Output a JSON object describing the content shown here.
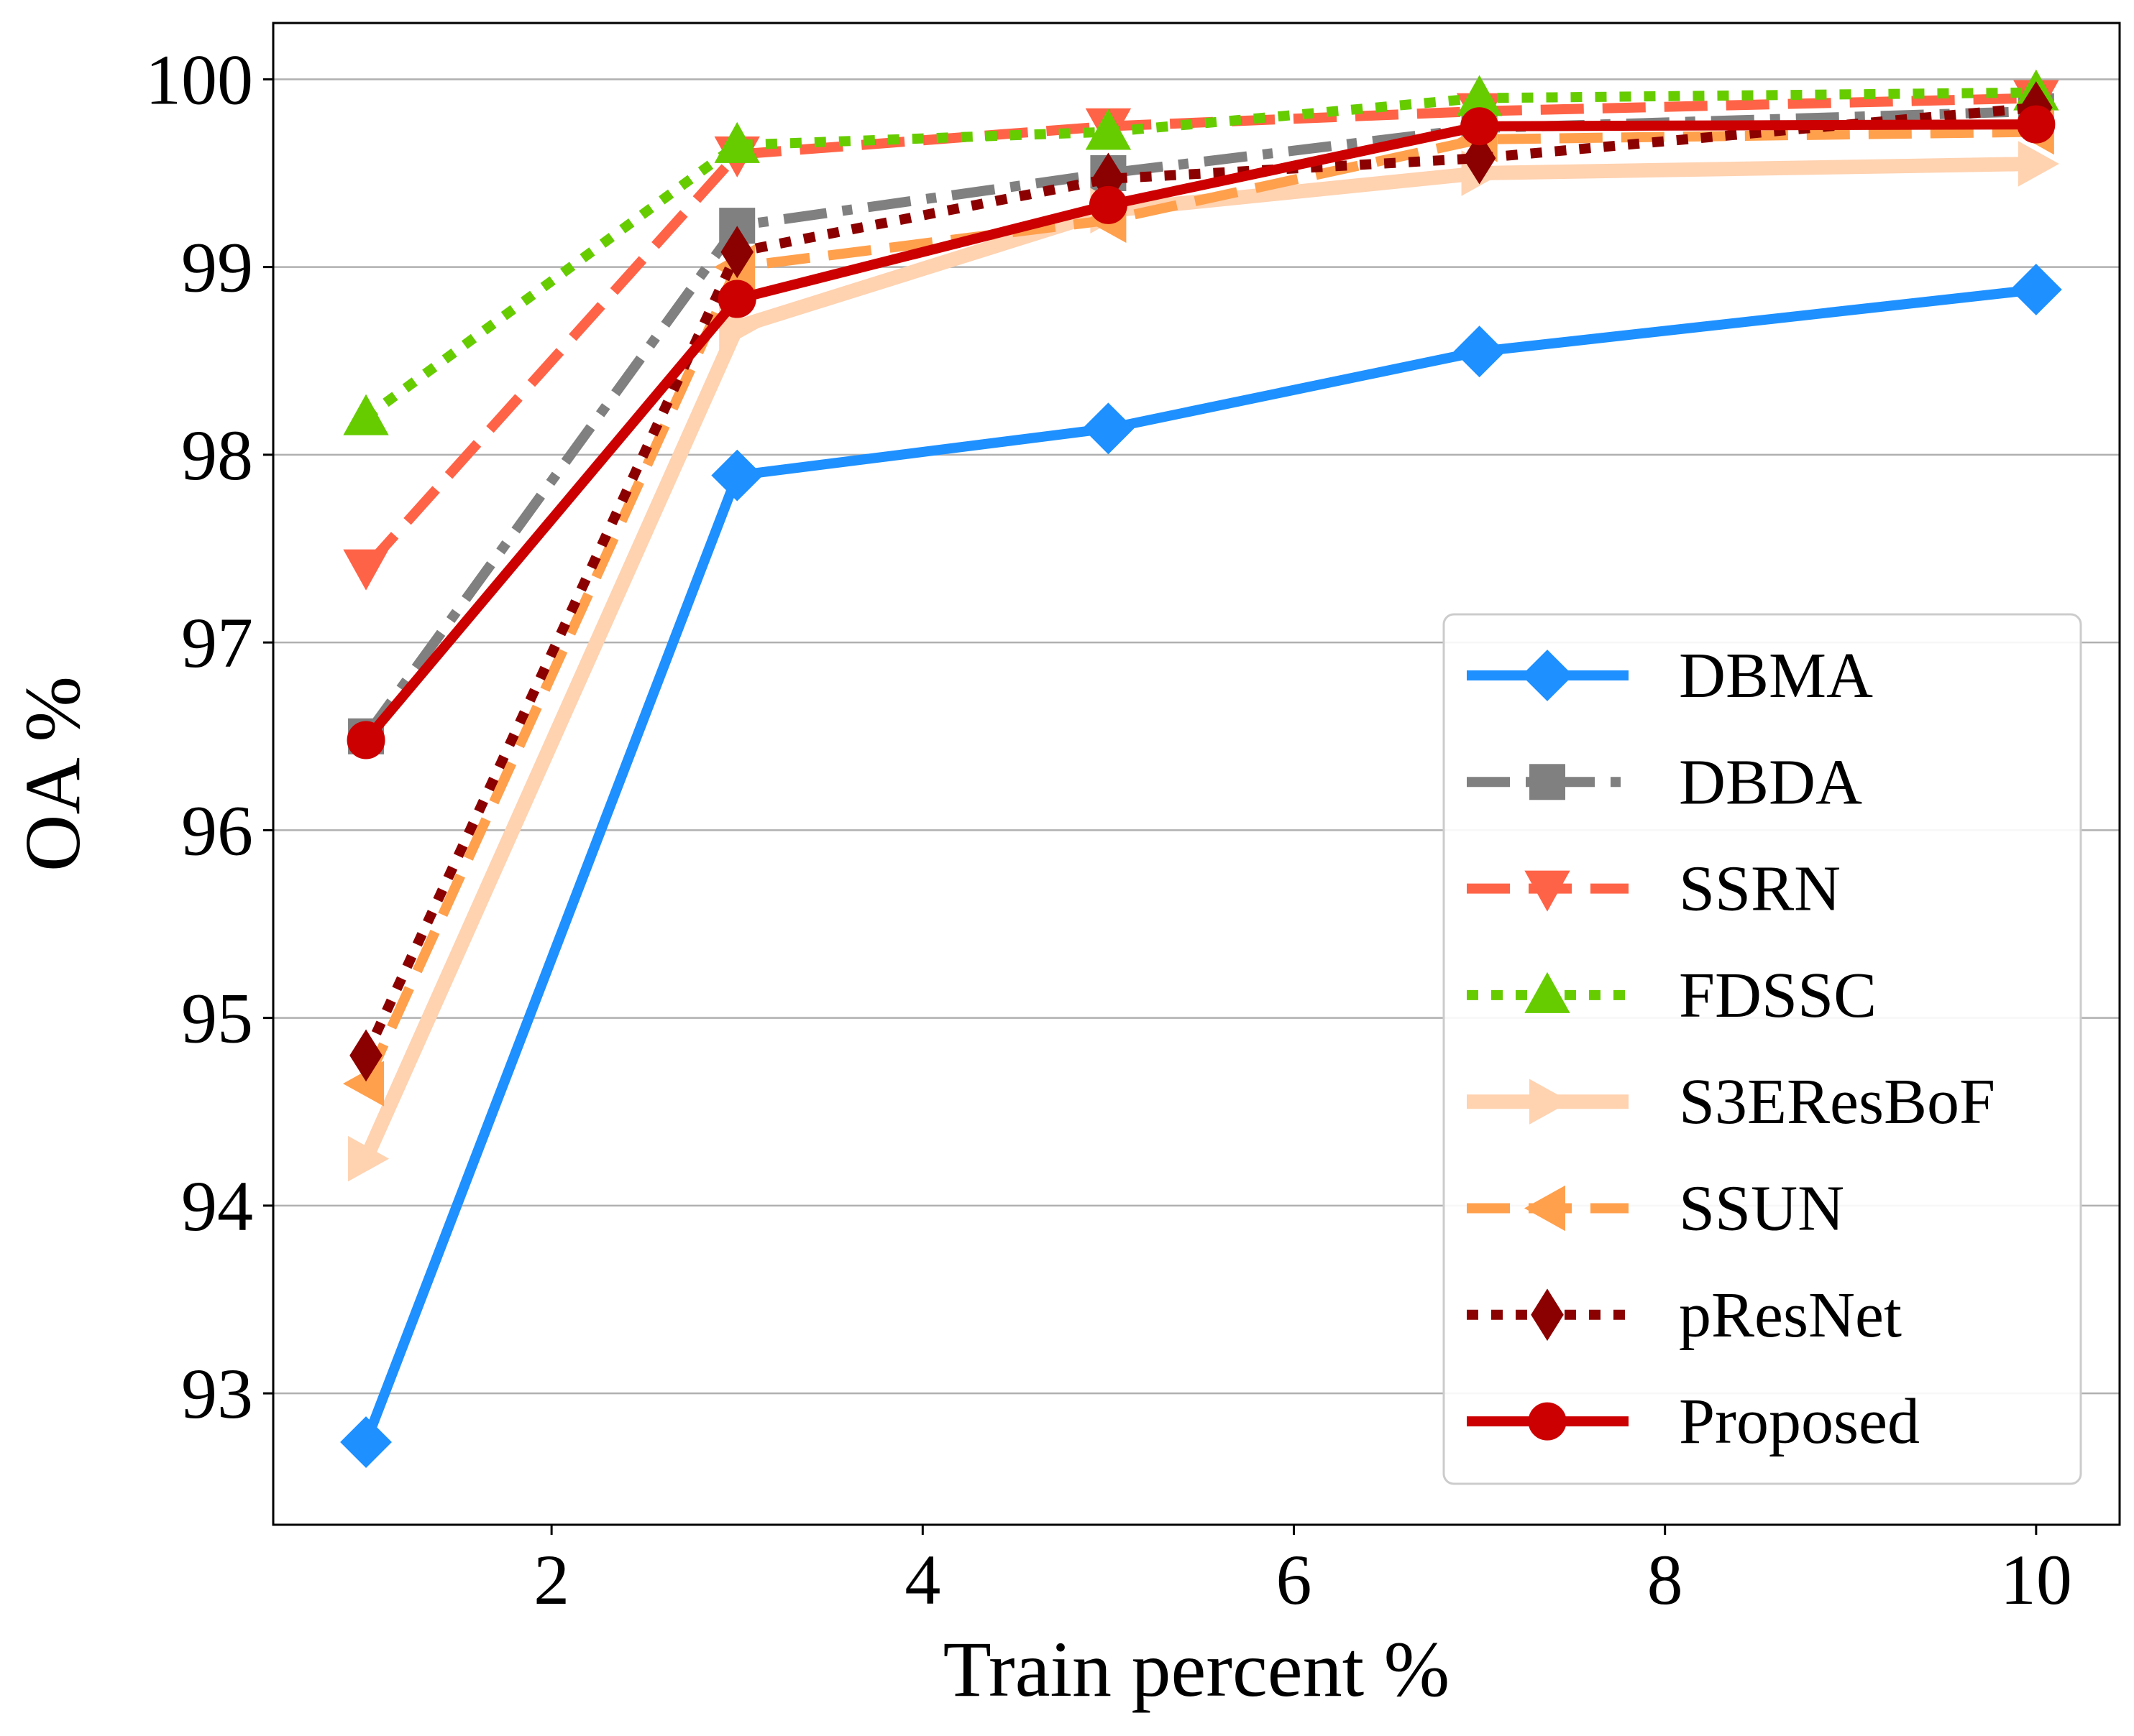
{
  "chart_data": {
    "type": "line",
    "xlabel": "Train percent %",
    "ylabel": "OA %",
    "x": [
      1,
      3,
      5,
      7,
      10
    ],
    "xlim": [
      0.5,
      10.45
    ],
    "ylim": [
      92.3,
      100.3
    ],
    "xticks": [
      "2",
      "4",
      "6",
      "8",
      "10"
    ],
    "yticks": [
      "93",
      "94",
      "95",
      "96",
      "97",
      "98",
      "99",
      "100"
    ],
    "grid": "horizontal",
    "legend_position": "lower right",
    "series": [
      {
        "name": "DBMA",
        "values": [
          92.74,
          97.89,
          98.14,
          98.55,
          98.88
        ],
        "color": "#1e90ff",
        "marker": "diamond",
        "line": "solid"
      },
      {
        "name": "DBDA",
        "values": [
          96.5,
          99.22,
          99.5,
          99.74,
          99.83
        ],
        "color": "#808080",
        "marker": "square",
        "line": "dashdot"
      },
      {
        "name": "SSRN",
        "values": [
          97.4,
          99.6,
          99.75,
          99.83,
          99.9
        ],
        "color": "#ff6347",
        "marker": "triangle-down",
        "line": "dashed"
      },
      {
        "name": "FDSSC",
        "values": [
          98.2,
          99.65,
          99.72,
          99.9,
          99.93
        ],
        "color": "#66cc00",
        "marker": "triangle-up",
        "line": "dotted"
      },
      {
        "name": "S3EResBoF",
        "values": [
          94.25,
          98.68,
          99.3,
          99.5,
          99.55
        ],
        "color": "#ffd2b0",
        "marker": "triangle-right",
        "line": "solid"
      },
      {
        "name": "SSUN",
        "values": [
          94.65,
          99.0,
          99.25,
          99.68,
          99.72
        ],
        "color": "#ffa04d",
        "marker": "triangle-left",
        "line": "dashed"
      },
      {
        "name": "pResNet",
        "values": [
          94.8,
          99.08,
          99.47,
          99.58,
          99.85
        ],
        "color": "#8b0000",
        "marker": "thin-diamond",
        "line": "dotted"
      },
      {
        "name": "Proposed",
        "values": [
          96.48,
          98.83,
          99.33,
          99.75,
          99.76
        ],
        "color": "#cc0000",
        "marker": "circle",
        "line": "solid"
      }
    ]
  }
}
